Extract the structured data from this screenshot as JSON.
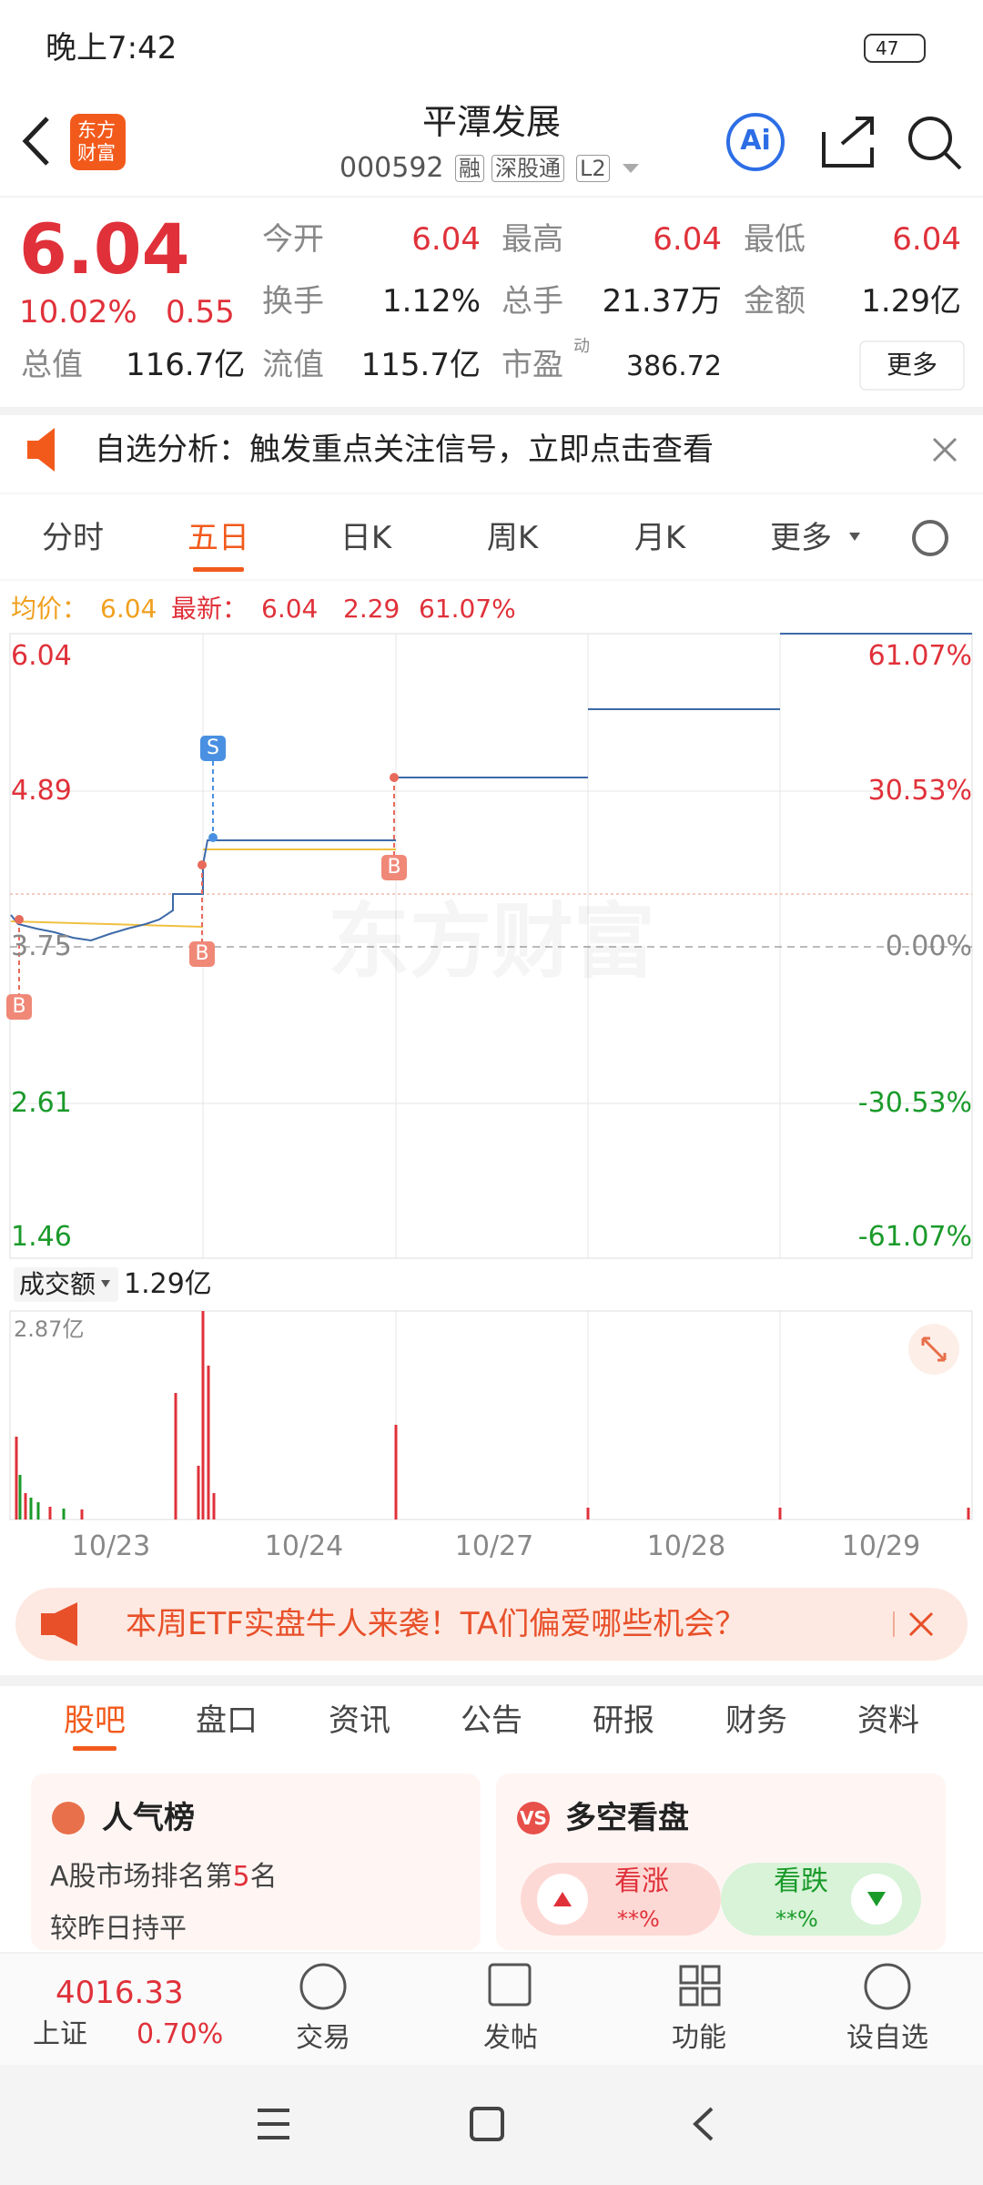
{
  "status_bar": {
    "time": "晚上7:42",
    "battery": "47"
  },
  "header": {
    "logo_line1": "东方",
    "logo_line2": "财富",
    "title": "平潭发展",
    "code": "000592",
    "badges": [
      "融",
      "深股通",
      "L2"
    ],
    "ai": "Ai"
  },
  "quote": {
    "price": "6.04",
    "change_pct": "10.02%",
    "change": "0.55",
    "fields": [
      {
        "label": "今开",
        "value": "6.04"
      },
      {
        "label": "最高",
        "value": "6.04"
      },
      {
        "label": "最低",
        "value": "6.04"
      },
      {
        "label": "换手",
        "value": "1.12%"
      },
      {
        "label": "总手",
        "value": "21.37万"
      },
      {
        "label": "金额",
        "value": "1.29亿"
      },
      {
        "label": "总值",
        "value": "116.7亿"
      },
      {
        "label": "流值",
        "value": "115.7亿"
      },
      {
        "label": "市盈",
        "sup": "动",
        "value": "386.72"
      }
    ],
    "more": "更多"
  },
  "notice": "自选分析：触发重点关注信号，立即点击查看",
  "chart_tabs": [
    "分时",
    "五日",
    "日K",
    "周K",
    "月K",
    "更多"
  ],
  "legend": {
    "avg_label": "均价：",
    "avg": "6.04",
    "latest_label": "最新：",
    "latest": "6.04",
    "change": "2.29",
    "pct": "61.07%"
  },
  "price_axis_left": [
    "6.04",
    "4.89",
    "3.75",
    "2.61",
    "1.46"
  ],
  "price_axis_right": [
    "61.07%",
    "30.53%",
    "0.00%",
    "-30.53%",
    "-61.07%"
  ],
  "markers": [
    "S",
    "B",
    "B",
    "B"
  ],
  "watermark": "东方财富",
  "volume": {
    "selector": "成交额",
    "value": "1.29亿",
    "max_label": "2.87亿"
  },
  "dates": [
    "10/23",
    "10/24",
    "10/27",
    "10/28",
    "10/29"
  ],
  "banner": "本周ETF实盘牛人来袭！TA们偏爱哪些机会？",
  "section_tabs": [
    "股吧",
    "盘口",
    "资讯",
    "公告",
    "研报",
    "财务",
    "资料"
  ],
  "cards": {
    "popularity": {
      "title": "人气榜",
      "line1_prefix": "A股市场排名第",
      "rank": "5",
      "line1_suffix": "名",
      "line2": "较昨日持平"
    },
    "sentiment": {
      "icon": "VS",
      "title": "多空看盘",
      "up": "看涨",
      "up_pct": "**%",
      "down": "看跌",
      "down_pct": "**%"
    }
  },
  "bottom_nav": {
    "index_value": "4016.33",
    "index_name": "上证",
    "index_pct": "0.70%",
    "items": [
      "交易",
      "发帖",
      "功能",
      "设自选"
    ]
  }
}
